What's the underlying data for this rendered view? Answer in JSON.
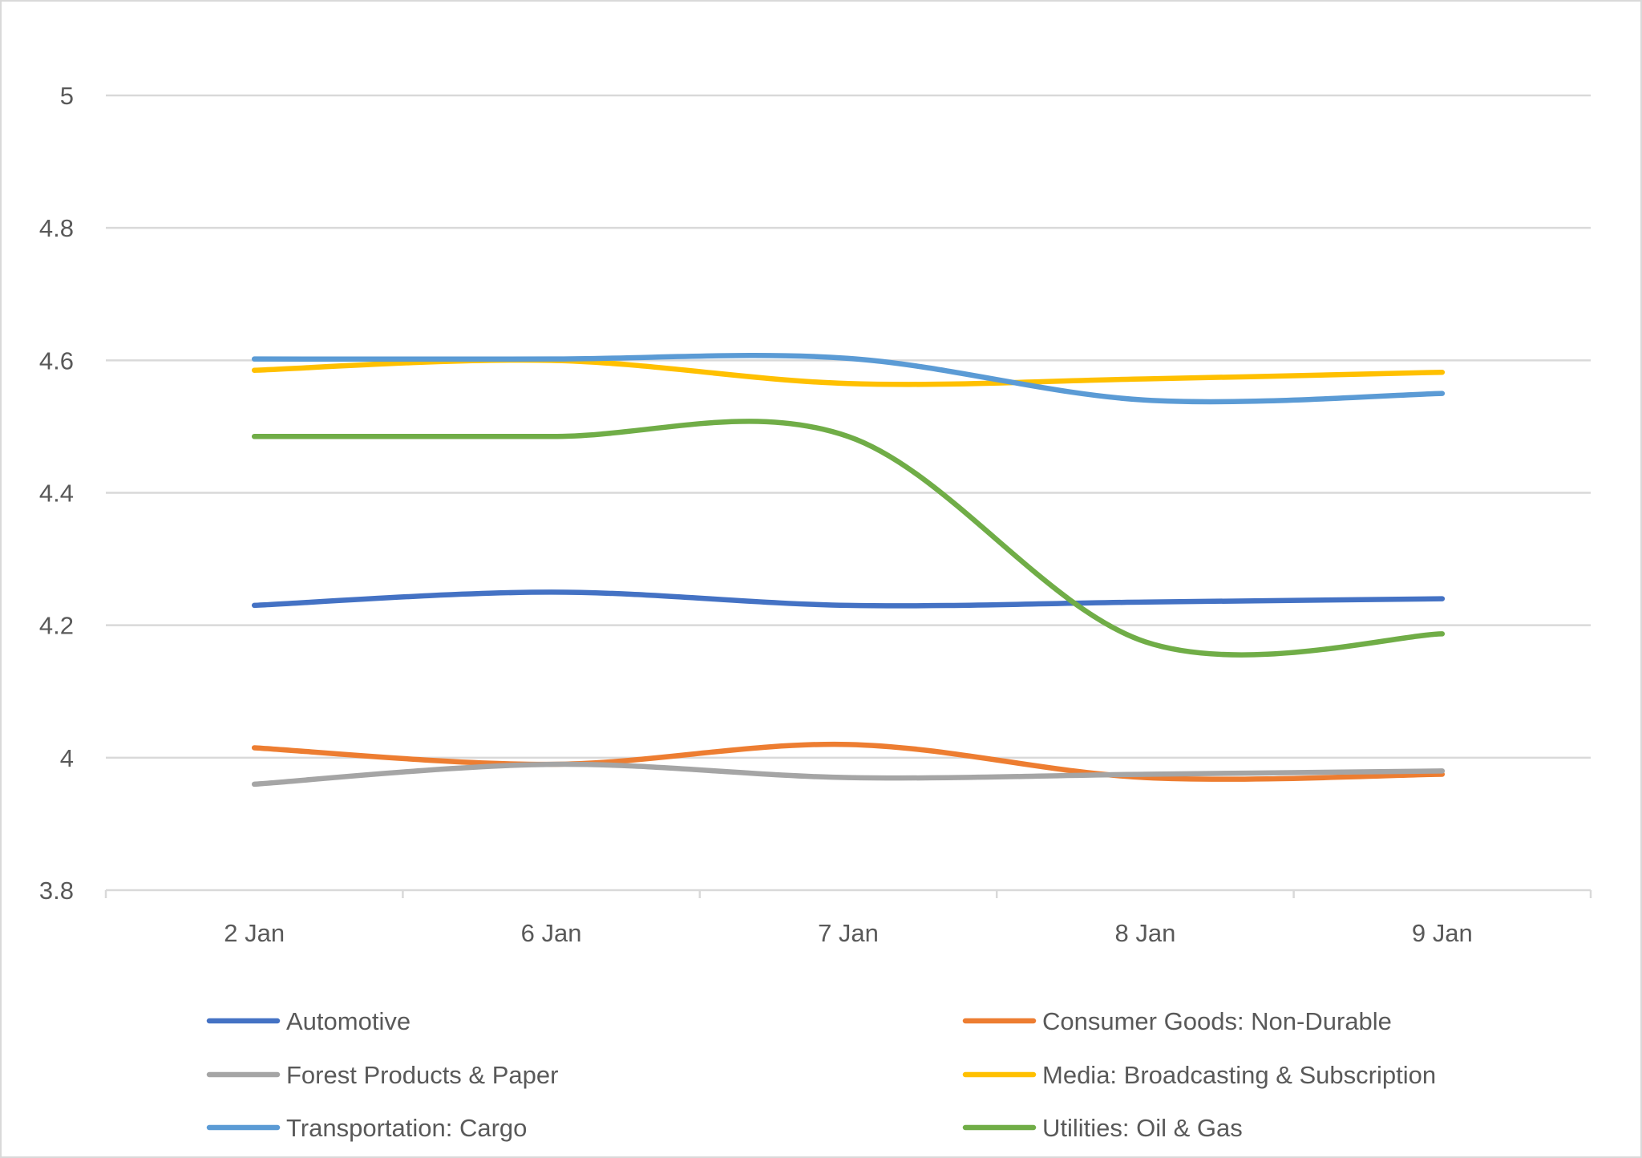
{
  "chart_data": {
    "type": "line",
    "smoothed": true,
    "title": "",
    "xlabel": "",
    "ylabel": "",
    "categories": [
      "2 Jan",
      "6 Jan",
      "7 Jan",
      "8 Jan",
      "9 Jan"
    ],
    "ylim": [
      3.8,
      5
    ],
    "yticks": [
      3.8,
      4,
      4.2,
      4.4,
      4.6,
      4.8,
      5
    ],
    "ytick_labels": [
      "3.8",
      "4",
      "4.2",
      "4.4",
      "4.6",
      "4.8",
      "5"
    ],
    "grid": true,
    "legend_placement": "bottom",
    "series": [
      {
        "name": "Automotive",
        "color": "#4472C4",
        "values": [
          4.23,
          4.25,
          4.23,
          4.235,
          4.24
        ]
      },
      {
        "name": "Consumer Goods: Non-Durable",
        "color": "#ED7D31",
        "values": [
          4.015,
          3.99,
          4.02,
          3.97,
          3.975
        ]
      },
      {
        "name": "Forest Products & Paper",
        "color": "#A5A5A5",
        "values": [
          3.96,
          3.99,
          3.97,
          3.975,
          3.98
        ]
      },
      {
        "name": "Media: Broadcasting & Subscription",
        "color": "#FFC000",
        "values": [
          4.585,
          4.6,
          4.565,
          4.572,
          4.582
        ]
      },
      {
        "name": "Transportation: Cargo",
        "color": "#5B9BD5",
        "values": [
          4.602,
          4.602,
          4.603,
          4.54,
          4.55
        ]
      },
      {
        "name": "Utilities: Oil & Gas",
        "color": "#70AD47",
        "values": [
          4.485,
          4.485,
          4.485,
          4.175,
          4.187
        ]
      }
    ]
  }
}
